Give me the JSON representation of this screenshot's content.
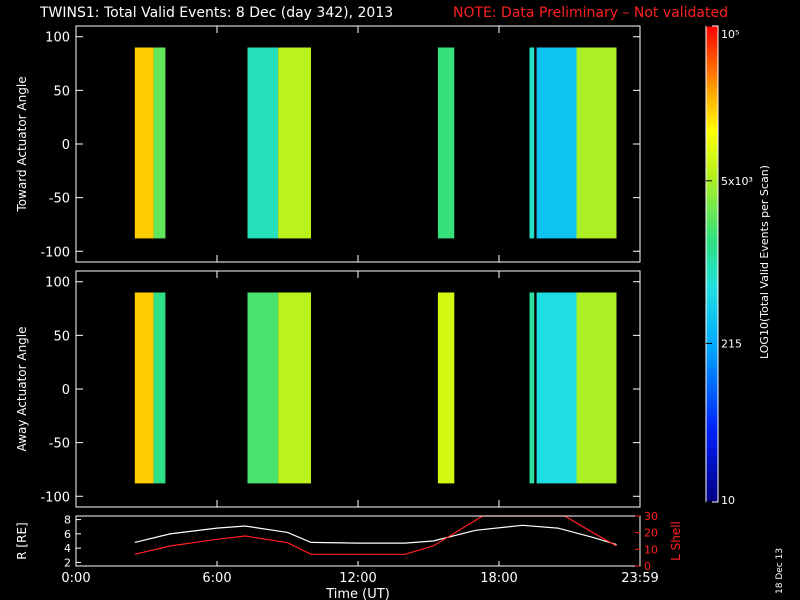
{
  "header": {
    "title": "TWINS1: Total Valid Events:  8 Dec (day 342), 2013",
    "note": "NOTE: Data Preliminary – Not validated",
    "note_color": "#ff2020"
  },
  "stamp": "18 Dec 13",
  "colorbar": {
    "label": "LOG10(Total Valid Events per Scan)",
    "ticks": [
      {
        "value": 10,
        "label": "10"
      },
      {
        "value": 215,
        "label": "215"
      },
      {
        "value": 5000,
        "label": "5x10³"
      },
      {
        "value": 100000,
        "label": "10⁵"
      }
    ],
    "range": [
      10,
      100000
    ],
    "scale": "log"
  },
  "chart_data": [
    {
      "type": "heatmap",
      "panel": "toward",
      "ylabel": "Toward Actuator Angle",
      "ylim": [
        -110,
        110
      ],
      "yticks": [
        -100,
        -50,
        0,
        50,
        100
      ],
      "xlim": [
        0,
        24
      ],
      "xticks": [
        "0:00",
        "6:00",
        "12:00",
        "18:00",
        "23:59"
      ],
      "y_coverage": [
        -88,
        90
      ],
      "blocks": [
        {
          "t_start": 2.5,
          "t_end": 3.3,
          "value": 20000
        },
        {
          "t_start": 3.3,
          "t_end": 3.8,
          "value": 2500
        },
        {
          "t_start": 7.3,
          "t_end": 8.6,
          "value": 900
        },
        {
          "t_start": 8.6,
          "t_end": 10.0,
          "value": 6000
        },
        {
          "t_start": 15.4,
          "t_end": 16.1,
          "value": 1700
        },
        {
          "t_start": 19.3,
          "t_end": 19.5,
          "value": 800
        },
        {
          "t_start": 19.6,
          "t_end": 21.3,
          "value": 350
        },
        {
          "t_start": 21.3,
          "t_end": 23.0,
          "value": 5000
        }
      ]
    },
    {
      "type": "heatmap",
      "panel": "away",
      "ylabel": "Away Actuator Angle",
      "ylim": [
        -110,
        110
      ],
      "yticks": [
        -100,
        -50,
        0,
        50,
        100
      ],
      "xlim": [
        0,
        24
      ],
      "xticks": [
        "0:00",
        "6:00",
        "12:00",
        "18:00",
        "23:59"
      ],
      "y_coverage": [
        -88,
        90
      ],
      "blocks": [
        {
          "t_start": 2.5,
          "t_end": 3.3,
          "value": 20000
        },
        {
          "t_start": 3.3,
          "t_end": 3.8,
          "value": 1500
        },
        {
          "t_start": 7.3,
          "t_end": 8.6,
          "value": 2000
        },
        {
          "t_start": 8.6,
          "t_end": 10.0,
          "value": 6000
        },
        {
          "t_start": 15.4,
          "t_end": 16.1,
          "value": 8000
        },
        {
          "t_start": 19.3,
          "t_end": 19.5,
          "value": 1200
        },
        {
          "t_start": 19.6,
          "t_end": 21.3,
          "value": 600
        },
        {
          "t_start": 21.3,
          "t_end": 23.0,
          "value": 5000
        }
      ]
    },
    {
      "type": "line",
      "panel": "orbit",
      "xlabel": "Time (UT)",
      "ylabel_left": "R [RE]",
      "ylabel_right": "L Shell",
      "ylim_left": [
        1.5,
        8.5
      ],
      "yticks_left": [
        "2",
        "4",
        "6",
        "8"
      ],
      "ylim_right": [
        0,
        30
      ],
      "yticks_right": [
        "0",
        "10",
        "20",
        "30"
      ],
      "xlim": [
        0,
        24
      ],
      "xticks": [
        "0:00",
        "6:00",
        "12:00",
        "18:00",
        "23:59"
      ],
      "series": [
        {
          "axis": "left",
          "color": "#ffffff",
          "x": [
            2.5,
            4.0,
            6.0,
            7.2,
            9.0,
            10.0,
            12.0,
            14.0,
            15.2,
            17.0,
            19.0,
            20.5,
            22.0,
            23.0
          ],
          "y": [
            4.8,
            6.0,
            6.8,
            7.1,
            6.2,
            4.8,
            4.7,
            4.7,
            5.0,
            6.5,
            7.2,
            6.8,
            5.5,
            4.5
          ]
        },
        {
          "axis": "right",
          "color": "#ff2020",
          "x": [
            2.5,
            4.0,
            6.0,
            7.2,
            9.0,
            10.0,
            12.0,
            14.0,
            15.2,
            17.3,
            20.8,
            22.0,
            23.0
          ],
          "y": [
            7,
            12,
            16,
            18,
            14,
            7,
            7,
            7,
            12,
            30,
            30,
            20,
            12
          ]
        }
      ]
    }
  ]
}
